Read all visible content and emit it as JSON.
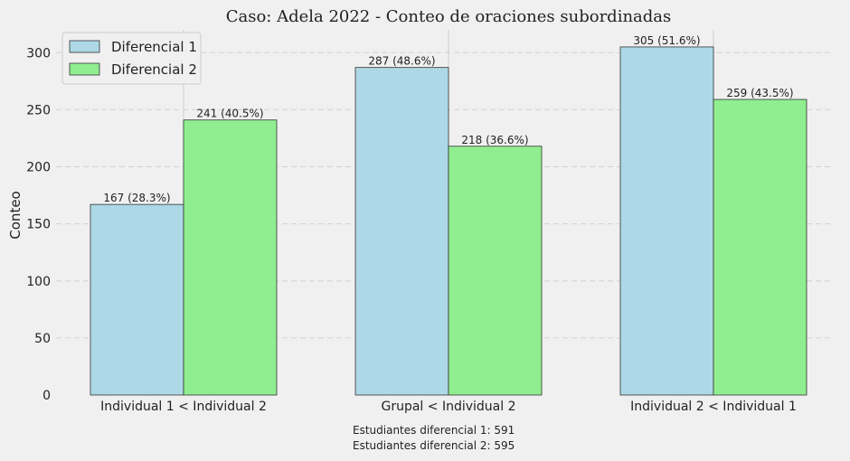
{
  "chart_data": {
    "type": "bar",
    "title": "Caso: Adela 2022 - Conteo de oraciones subordinadas",
    "xlabel": "",
    "ylabel": "Conteo",
    "categories": [
      "Individual 1 < Individual 2",
      "Grupal < Individual 2",
      "Individual 2 < Individual 1"
    ],
    "series": [
      {
        "name": "Diferencial 1",
        "color": "#add8e6",
        "values": [
          167,
          287,
          305
        ],
        "labels": [
          "167 (28.3%)",
          "287 (48.6%)",
          "305 (51.6%)"
        ]
      },
      {
        "name": "Diferencial 2",
        "color": "#90ee90",
        "values": [
          241,
          218,
          259
        ],
        "labels": [
          "241 (40.5%)",
          "218 (36.6%)",
          "259 (43.5%)"
        ]
      }
    ],
    "ylim": [
      0,
      320
    ],
    "yticks": [
      0,
      50,
      100,
      150,
      200,
      250,
      300
    ],
    "grid": true,
    "legend_position": "top-left",
    "footnotes": [
      "Estudiantes diferencial 1: 591",
      "Estudiantes diferencial 2: 595"
    ]
  }
}
